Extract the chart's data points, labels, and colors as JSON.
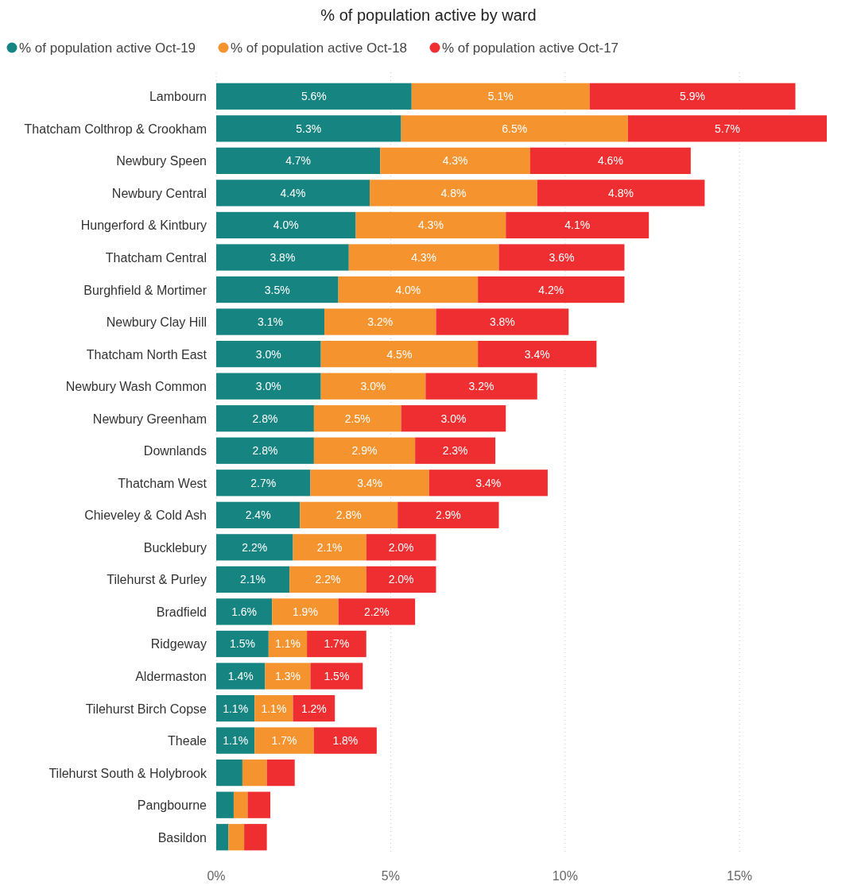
{
  "chart_data": {
    "type": "bar",
    "orientation": "horizontal",
    "stacked": true,
    "title": "% of population active by ward",
    "legend": "top left",
    "grid": "x",
    "categories": [
      "Lambourn",
      "Thatcham Colthrop & Crookham",
      "Newbury Speen",
      "Newbury Central",
      "Hungerford & Kintbury",
      "Thatcham Central",
      "Burghfield & Mortimer",
      "Newbury Clay Hill",
      "Thatcham North East",
      "Newbury Wash Common",
      "Newbury Greenham",
      "Downlands",
      "Thatcham West",
      "Chieveley & Cold Ash",
      "Bucklebury",
      "Tilehurst & Purley",
      "Bradfield",
      "Ridgeway",
      "Aldermaston",
      "Tilehurst Birch Copse",
      "Theale",
      "Tilehurst South & Holybrook",
      "Pangbourne",
      "Basildon"
    ],
    "xlim": [
      0,
      17.5
    ],
    "xticks": [
      {
        "value": 0,
        "label": "0%"
      },
      {
        "value": 5,
        "label": "5%"
      },
      {
        "value": 10,
        "label": "10%"
      },
      {
        "value": 15,
        "label": "15%"
      }
    ],
    "series": [
      {
        "name": "% of population active Oct-19",
        "color": "#168480",
        "values": [
          5.6,
          5.3,
          4.7,
          4.4,
          4.0,
          3.8,
          3.5,
          3.1,
          3.0,
          3.0,
          2.8,
          2.8,
          2.7,
          2.4,
          2.2,
          2.1,
          1.6,
          1.5,
          1.4,
          1.1,
          1.1,
          0.75,
          0.5,
          0.35
        ],
        "value_labels": [
          "5.6%",
          "5.3%",
          "4.7%",
          "4.4%",
          "4.0%",
          "3.8%",
          "3.5%",
          "3.1%",
          "3.0%",
          "3.0%",
          "2.8%",
          "2.8%",
          "2.7%",
          "2.4%",
          "2.2%",
          "2.1%",
          "1.6%",
          "1.5%",
          "1.4%",
          "1.1%",
          "1.1%",
          null,
          null,
          null
        ]
      },
      {
        "name": "% of population active Oct-18",
        "color": "#f5932f",
        "values": [
          5.1,
          6.5,
          4.3,
          4.8,
          4.3,
          4.3,
          4.0,
          3.2,
          4.5,
          3.0,
          2.5,
          2.9,
          3.4,
          2.8,
          2.1,
          2.2,
          1.9,
          1.1,
          1.3,
          1.1,
          1.7,
          0.7,
          0.4,
          0.45
        ],
        "value_labels": [
          "5.1%",
          "6.5%",
          "4.3%",
          "4.8%",
          "4.3%",
          "4.3%",
          "4.0%",
          "3.2%",
          "4.5%",
          "3.0%",
          "2.5%",
          "2.9%",
          "3.4%",
          "2.8%",
          "2.1%",
          "2.2%",
          "1.9%",
          "1.1%",
          "1.3%",
          "1.1%",
          "1.7%",
          null,
          null,
          null
        ]
      },
      {
        "name": "% of population active Oct-17",
        "color": "#ef2e31",
        "values": [
          5.9,
          5.7,
          4.6,
          4.8,
          4.1,
          3.6,
          4.2,
          3.8,
          3.4,
          3.2,
          3.0,
          2.3,
          3.4,
          2.9,
          2.0,
          2.0,
          2.2,
          1.7,
          1.5,
          1.2,
          1.8,
          0.8,
          0.65,
          0.65
        ],
        "value_labels": [
          "5.9%",
          "5.7%",
          "4.6%",
          "4.8%",
          "4.1%",
          "3.6%",
          "4.2%",
          "3.8%",
          "3.4%",
          "3.2%",
          "3.0%",
          "2.3%",
          "3.4%",
          "2.9%",
          "2.0%",
          "2.0%",
          "2.2%",
          "1.7%",
          "1.5%",
          "1.2%",
          "1.8%",
          null,
          null,
          null
        ]
      }
    ]
  }
}
